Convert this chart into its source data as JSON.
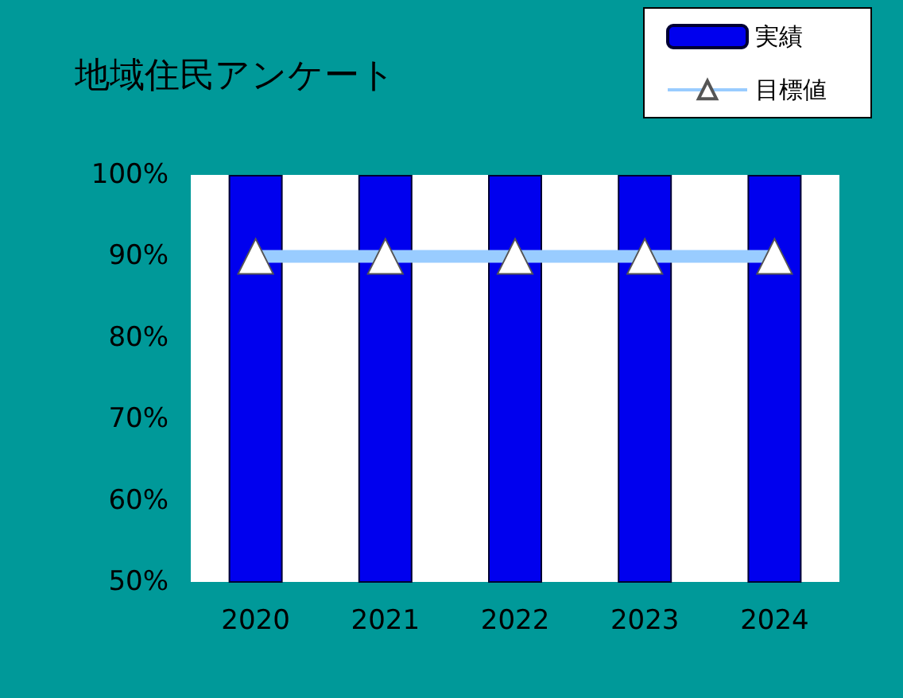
{
  "chart_data": {
    "type": "bar",
    "title": "地域住民アンケート",
    "categories": [
      "2020",
      "2021",
      "2022",
      "2023",
      "2024"
    ],
    "series": [
      {
        "name": "実績",
        "color": "#0000ee",
        "values": [
          100,
          100,
          100,
          100,
          100
        ]
      },
      {
        "name": "目標値",
        "type": "line",
        "color": "#99ccff",
        "marker": "triangle",
        "values": [
          90,
          90,
          90,
          90,
          90
        ]
      }
    ],
    "ylim": [
      50,
      100
    ],
    "yticks": [
      {
        "value": 50,
        "label": "50%"
      },
      {
        "value": 60,
        "label": "60%"
      },
      {
        "value": 70,
        "label": "70%"
      },
      {
        "value": 80,
        "label": "80%"
      },
      {
        "value": 90,
        "label": "90%"
      },
      {
        "value": 100,
        "label": "100%"
      }
    ],
    "grid": false,
    "legend": "top right"
  }
}
